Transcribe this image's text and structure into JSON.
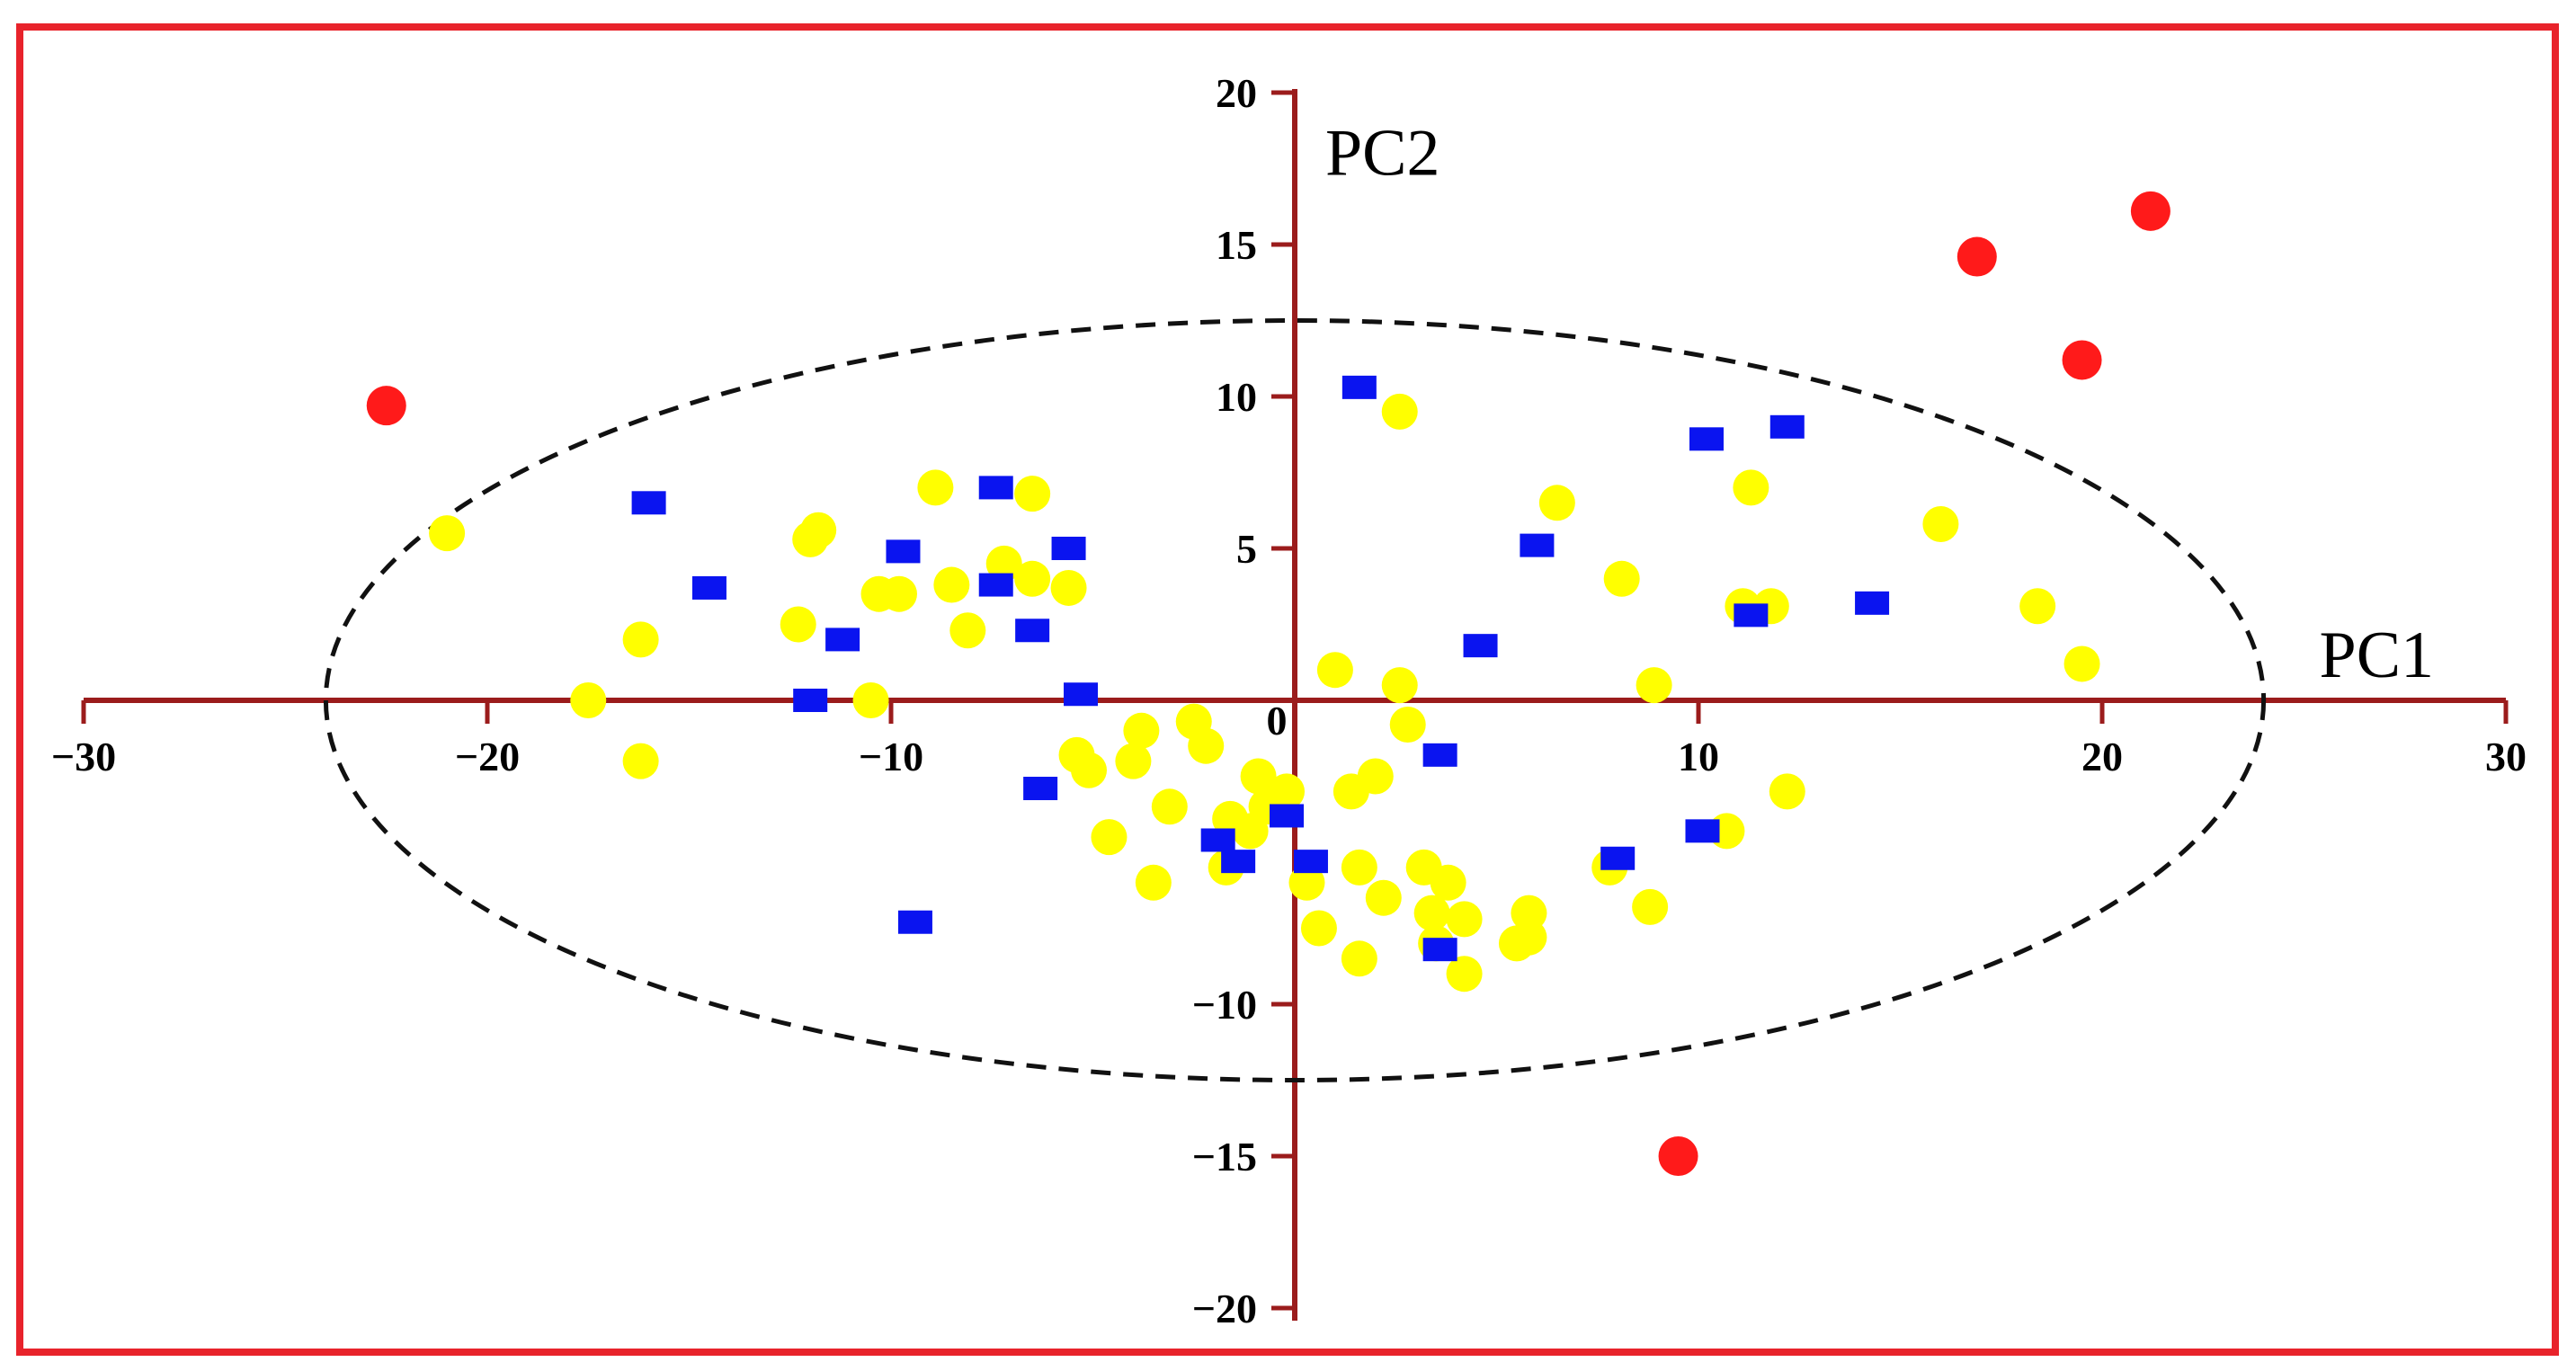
{
  "chart_data": {
    "type": "scatter",
    "title": "",
    "xlabel": "PC1",
    "ylabel": "PC2",
    "xlim": [
      -30,
      30
    ],
    "ylim": [
      -20,
      20
    ],
    "x_ticks": [
      "−30",
      "−20",
      "−10",
      "0",
      "10",
      "20",
      "30"
    ],
    "y_ticks": [
      "20",
      "15",
      "10",
      "5",
      "−10",
      "−15",
      "−20"
    ],
    "grid": false,
    "legend": "none",
    "axis_color": "#9b1c1c",
    "frame_color": "#e8232b",
    "confidence_ellipse": {
      "center": [
        0,
        0
      ],
      "rx": 24,
      "ry": 12.5,
      "style": "dashed",
      "color": "#111111"
    },
    "series": [
      {
        "marker": "circle",
        "color": "#ffff00",
        "points": [
          [
            -21,
            5.5
          ],
          [
            -17.5,
            0
          ],
          [
            -16.2,
            2
          ],
          [
            -16.2,
            -2
          ],
          [
            -12,
            5.3
          ],
          [
            -11.8,
            5.6
          ],
          [
            -12.3,
            2.5
          ],
          [
            -10.5,
            0
          ],
          [
            -10.3,
            3.5
          ],
          [
            -9.8,
            3.5
          ],
          [
            -8.9,
            7
          ],
          [
            -8.5,
            3.8
          ],
          [
            -8.1,
            2.3
          ],
          [
            -7.2,
            4.5
          ],
          [
            -6.5,
            4
          ],
          [
            -6.5,
            6.8
          ],
          [
            -5.6,
            3.7
          ],
          [
            -5.4,
            -1.8
          ],
          [
            -5.1,
            -2.3
          ],
          [
            -4.6,
            -4.5
          ],
          [
            -4,
            -2
          ],
          [
            -3.8,
            -1
          ],
          [
            -3.5,
            -6
          ],
          [
            -3.1,
            -3.5
          ],
          [
            -2.5,
            -0.7
          ],
          [
            -2.2,
            -1.5
          ],
          [
            -1.7,
            -5.5
          ],
          [
            -1.6,
            -3.9
          ],
          [
            -1.1,
            -4.3
          ],
          [
            -0.9,
            -2.5
          ],
          [
            -0.7,
            -3.5
          ],
          [
            -0.2,
            -3
          ],
          [
            0.3,
            -6
          ],
          [
            0.6,
            -7.5
          ],
          [
            1,
            1
          ],
          [
            1.4,
            -3
          ],
          [
            1.6,
            -5.5
          ],
          [
            1.6,
            -8.5
          ],
          [
            2,
            -2.5
          ],
          [
            2.2,
            -6.5
          ],
          [
            2.6,
            9.5
          ],
          [
            2.6,
            0.5
          ],
          [
            2.8,
            -0.8
          ],
          [
            3.2,
            -5.5
          ],
          [
            3.4,
            -7
          ],
          [
            3.5,
            -8
          ],
          [
            3.8,
            -6
          ],
          [
            4.2,
            -7.2
          ],
          [
            4.2,
            -9
          ],
          [
            5.5,
            -8
          ],
          [
            5.8,
            -7
          ],
          [
            5.8,
            -7.8
          ],
          [
            6.5,
            6.5
          ],
          [
            7.8,
            -5.5
          ],
          [
            8.1,
            4
          ],
          [
            8.8,
            -6.8
          ],
          [
            8.9,
            0.5
          ],
          [
            10.7,
            -4.3
          ],
          [
            11.1,
            3.1
          ],
          [
            11.3,
            7
          ],
          [
            11.8,
            3.1
          ],
          [
            12.2,
            -3
          ],
          [
            16,
            5.8
          ],
          [
            18.4,
            3.1
          ],
          [
            19.5,
            1.2
          ]
        ]
      },
      {
        "marker": "square",
        "color": "#0a14f0",
        "points": [
          [
            -16,
            6.5
          ],
          [
            -14.5,
            3.7
          ],
          [
            -12,
            0
          ],
          [
            -11.2,
            2
          ],
          [
            -9.7,
            4.9
          ],
          [
            -9.4,
            -7.3
          ],
          [
            -7.4,
            7
          ],
          [
            -7.4,
            3.8
          ],
          [
            -6.5,
            2.3
          ],
          [
            -6.3,
            -2.9
          ],
          [
            -5.6,
            5
          ],
          [
            -5.3,
            0.2
          ],
          [
            -1.9,
            -4.6
          ],
          [
            -1.4,
            -5.3
          ],
          [
            -0.2,
            -3.8
          ],
          [
            0.4,
            -5.3
          ],
          [
            1.6,
            10.3
          ],
          [
            3.6,
            -1.8
          ],
          [
            3.6,
            -8.2
          ],
          [
            4.6,
            1.8
          ],
          [
            6,
            5.1
          ],
          [
            8,
            -5.2
          ],
          [
            10.1,
            -4.3
          ],
          [
            10.2,
            8.6
          ],
          [
            11.3,
            2.8
          ],
          [
            12.2,
            9
          ],
          [
            14.3,
            3.2
          ]
        ]
      },
      {
        "marker": "circle",
        "color": "#ff1a1a",
        "points": [
          [
            -22.5,
            9.7
          ],
          [
            16.9,
            14.6
          ],
          [
            19.5,
            11.2
          ],
          [
            21.2,
            16.1
          ],
          [
            9.5,
            -15
          ]
        ]
      }
    ]
  }
}
